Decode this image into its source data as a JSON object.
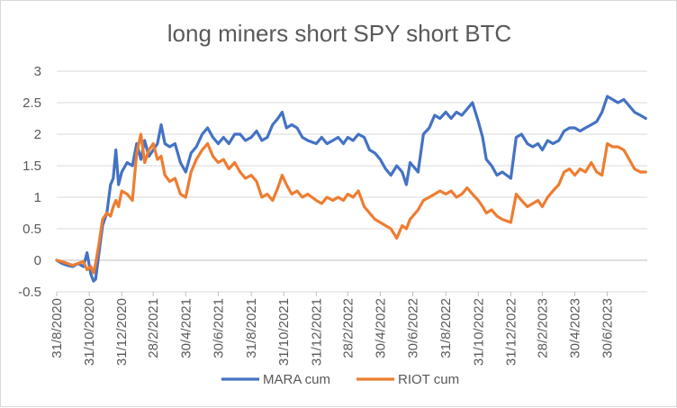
{
  "chart_data": {
    "type": "line",
    "title": "long miners short SPY short BTC",
    "xlabel": "",
    "ylabel": "",
    "ylim": [
      -0.5,
      3
    ],
    "yticks": [
      "3",
      "2.5",
      "2",
      "1.5",
      "1",
      "0.5",
      "0",
      "-0.5"
    ],
    "yticks_values": [
      3,
      2.5,
      2,
      1.5,
      1,
      0.5,
      0,
      -0.5
    ],
    "x_start": "31/8/2020",
    "x_end": "30/9/2023",
    "x_tick_labels": [
      "31/8/2020",
      "31/10/2020",
      "31/12/2020",
      "28/2/2021",
      "30/4/2021",
      "30/6/2021",
      "31/8/2021",
      "31/10/2021",
      "31/12/2021",
      "28/2/2022",
      "30/4/2022",
      "30/6/2022",
      "31/8/2022",
      "31/10/2022",
      "31/12/2022",
      "28/2/2023",
      "30/4/2023",
      "30/6/2023"
    ],
    "legend_position": "bottom",
    "grid": "horizontal",
    "series": [
      {
        "name": "MARA cum",
        "color": "#4472C4",
        "points": [
          [
            "2020-08-31",
            0.0
          ],
          [
            "2020-09-10",
            -0.05
          ],
          [
            "2020-09-20",
            -0.08
          ],
          [
            "2020-09-30",
            -0.1
          ],
          [
            "2020-10-10",
            -0.05
          ],
          [
            "2020-10-20",
            -0.1
          ],
          [
            "2020-10-27",
            0.12
          ],
          [
            "2020-11-03",
            -0.22
          ],
          [
            "2020-11-08",
            -0.33
          ],
          [
            "2020-11-12",
            -0.3
          ],
          [
            "2020-11-18",
            0.1
          ],
          [
            "2020-11-25",
            0.55
          ],
          [
            "2020-12-03",
            0.75
          ],
          [
            "2020-12-10",
            1.2
          ],
          [
            "2020-12-15",
            1.3
          ],
          [
            "2020-12-20",
            1.75
          ],
          [
            "2020-12-25",
            1.2
          ],
          [
            "2020-12-31",
            1.4
          ],
          [
            "2021-01-10",
            1.55
          ],
          [
            "2021-01-20",
            1.5
          ],
          [
            "2021-01-28",
            1.85
          ],
          [
            "2021-02-05",
            1.6
          ],
          [
            "2021-02-12",
            1.9
          ],
          [
            "2021-02-20",
            1.65
          ],
          [
            "2021-02-28",
            1.75
          ],
          [
            "2021-03-08",
            1.85
          ],
          [
            "2021-03-15",
            2.15
          ],
          [
            "2021-03-22",
            1.85
          ],
          [
            "2021-03-31",
            1.8
          ],
          [
            "2021-04-10",
            1.85
          ],
          [
            "2021-04-20",
            1.55
          ],
          [
            "2021-04-30",
            1.4
          ],
          [
            "2021-05-10",
            1.7
          ],
          [
            "2021-05-20",
            1.8
          ],
          [
            "2021-05-31",
            2.0
          ],
          [
            "2021-06-10",
            2.1
          ],
          [
            "2021-06-20",
            1.95
          ],
          [
            "2021-06-30",
            1.85
          ],
          [
            "2021-07-10",
            1.95
          ],
          [
            "2021-07-20",
            1.85
          ],
          [
            "2021-07-31",
            2.0
          ],
          [
            "2021-08-10",
            2.0
          ],
          [
            "2021-08-20",
            1.9
          ],
          [
            "2021-08-31",
            1.95
          ],
          [
            "2021-09-10",
            2.05
          ],
          [
            "2021-09-20",
            1.9
          ],
          [
            "2021-09-30",
            1.95
          ],
          [
            "2021-10-10",
            2.15
          ],
          [
            "2021-10-20",
            2.25
          ],
          [
            "2021-10-28",
            2.35
          ],
          [
            "2021-11-05",
            2.1
          ],
          [
            "2021-11-15",
            2.15
          ],
          [
            "2021-11-25",
            2.1
          ],
          [
            "2021-12-05",
            1.95
          ],
          [
            "2021-12-15",
            1.9
          ],
          [
            "2021-12-31",
            1.85
          ],
          [
            "2022-01-10",
            1.95
          ],
          [
            "2022-01-20",
            1.85
          ],
          [
            "2022-01-31",
            1.9
          ],
          [
            "2022-02-10",
            1.95
          ],
          [
            "2022-02-20",
            1.85
          ],
          [
            "2022-02-28",
            1.95
          ],
          [
            "2022-03-10",
            1.9
          ],
          [
            "2022-03-20",
            2.0
          ],
          [
            "2022-03-31",
            1.95
          ],
          [
            "2022-04-10",
            1.75
          ],
          [
            "2022-04-20",
            1.7
          ],
          [
            "2022-04-30",
            1.6
          ],
          [
            "2022-05-10",
            1.45
          ],
          [
            "2022-05-20",
            1.35
          ],
          [
            "2022-05-31",
            1.5
          ],
          [
            "2022-06-10",
            1.4
          ],
          [
            "2022-06-18",
            1.2
          ],
          [
            "2022-06-25",
            1.55
          ],
          [
            "2022-06-30",
            1.5
          ],
          [
            "2022-07-10",
            1.4
          ],
          [
            "2022-07-20",
            2.0
          ],
          [
            "2022-07-31",
            2.1
          ],
          [
            "2022-08-10",
            2.3
          ],
          [
            "2022-08-20",
            2.25
          ],
          [
            "2022-08-31",
            2.35
          ],
          [
            "2022-09-10",
            2.25
          ],
          [
            "2022-09-20",
            2.35
          ],
          [
            "2022-09-30",
            2.3
          ],
          [
            "2022-10-10",
            2.4
          ],
          [
            "2022-10-20",
            2.5
          ],
          [
            "2022-10-31",
            2.2
          ],
          [
            "2022-11-08",
            1.95
          ],
          [
            "2022-11-15",
            1.6
          ],
          [
            "2022-11-25",
            1.5
          ],
          [
            "2022-12-05",
            1.35
          ],
          [
            "2022-12-15",
            1.4
          ],
          [
            "2022-12-31",
            1.3
          ],
          [
            "2023-01-10",
            1.95
          ],
          [
            "2023-01-20",
            2.0
          ],
          [
            "2023-01-31",
            1.85
          ],
          [
            "2023-02-10",
            1.8
          ],
          [
            "2023-02-20",
            1.85
          ],
          [
            "2023-02-28",
            1.75
          ],
          [
            "2023-03-10",
            1.9
          ],
          [
            "2023-03-20",
            1.85
          ],
          [
            "2023-03-31",
            1.9
          ],
          [
            "2023-04-10",
            2.05
          ],
          [
            "2023-04-20",
            2.1
          ],
          [
            "2023-04-30",
            2.1
          ],
          [
            "2023-05-10",
            2.05
          ],
          [
            "2023-05-20",
            2.1
          ],
          [
            "2023-05-31",
            2.15
          ],
          [
            "2023-06-10",
            2.2
          ],
          [
            "2023-06-20",
            2.35
          ],
          [
            "2023-06-30",
            2.6
          ],
          [
            "2023-07-10",
            2.55
          ],
          [
            "2023-07-20",
            2.5
          ],
          [
            "2023-07-31",
            2.55
          ],
          [
            "2023-08-10",
            2.45
          ],
          [
            "2023-08-20",
            2.35
          ],
          [
            "2023-08-31",
            2.3
          ],
          [
            "2023-09-10",
            2.25
          ]
        ]
      },
      {
        "name": "RIOT cum",
        "color": "#ED7D31",
        "points": [
          [
            "2020-08-31",
            0.0
          ],
          [
            "2020-09-10",
            -0.02
          ],
          [
            "2020-09-20",
            -0.05
          ],
          [
            "2020-09-30",
            -0.08
          ],
          [
            "2020-10-10",
            -0.05
          ],
          [
            "2020-10-20",
            -0.02
          ],
          [
            "2020-10-27",
            -0.15
          ],
          [
            "2020-11-03",
            -0.1
          ],
          [
            "2020-11-08",
            -0.2
          ],
          [
            "2020-11-12",
            -0.05
          ],
          [
            "2020-11-18",
            0.25
          ],
          [
            "2020-11-25",
            0.65
          ],
          [
            "2020-12-03",
            0.75
          ],
          [
            "2020-12-10",
            0.7
          ],
          [
            "2020-12-15",
            0.85
          ],
          [
            "2020-12-20",
            0.95
          ],
          [
            "2020-12-25",
            0.85
          ],
          [
            "2020-12-31",
            1.1
          ],
          [
            "2021-01-10",
            1.05
          ],
          [
            "2021-01-20",
            0.95
          ],
          [
            "2021-01-28",
            1.7
          ],
          [
            "2021-02-05",
            2.0
          ],
          [
            "2021-02-12",
            1.55
          ],
          [
            "2021-02-20",
            1.75
          ],
          [
            "2021-02-28",
            1.85
          ],
          [
            "2021-03-08",
            1.6
          ],
          [
            "2021-03-15",
            1.65
          ],
          [
            "2021-03-22",
            1.35
          ],
          [
            "2021-03-31",
            1.25
          ],
          [
            "2021-04-10",
            1.3
          ],
          [
            "2021-04-20",
            1.05
          ],
          [
            "2021-04-30",
            1.0
          ],
          [
            "2021-05-10",
            1.4
          ],
          [
            "2021-05-20",
            1.6
          ],
          [
            "2021-05-31",
            1.75
          ],
          [
            "2021-06-10",
            1.85
          ],
          [
            "2021-06-20",
            1.65
          ],
          [
            "2021-06-30",
            1.55
          ],
          [
            "2021-07-10",
            1.6
          ],
          [
            "2021-07-20",
            1.45
          ],
          [
            "2021-07-31",
            1.55
          ],
          [
            "2021-08-10",
            1.4
          ],
          [
            "2021-08-20",
            1.3
          ],
          [
            "2021-08-31",
            1.35
          ],
          [
            "2021-09-10",
            1.25
          ],
          [
            "2021-09-20",
            1.0
          ],
          [
            "2021-09-30",
            1.05
          ],
          [
            "2021-10-10",
            0.95
          ],
          [
            "2021-10-20",
            1.15
          ],
          [
            "2021-10-28",
            1.35
          ],
          [
            "2021-11-05",
            1.2
          ],
          [
            "2021-11-15",
            1.05
          ],
          [
            "2021-11-25",
            1.1
          ],
          [
            "2021-12-05",
            1.0
          ],
          [
            "2021-12-15",
            1.05
          ],
          [
            "2021-12-31",
            0.95
          ],
          [
            "2022-01-10",
            0.9
          ],
          [
            "2022-01-20",
            1.0
          ],
          [
            "2022-01-31",
            0.95
          ],
          [
            "2022-02-10",
            1.0
          ],
          [
            "2022-02-20",
            0.95
          ],
          [
            "2022-02-28",
            1.05
          ],
          [
            "2022-03-10",
            1.0
          ],
          [
            "2022-03-20",
            1.1
          ],
          [
            "2022-03-31",
            0.85
          ],
          [
            "2022-04-10",
            0.75
          ],
          [
            "2022-04-20",
            0.65
          ],
          [
            "2022-04-30",
            0.6
          ],
          [
            "2022-05-10",
            0.55
          ],
          [
            "2022-05-20",
            0.5
          ],
          [
            "2022-05-31",
            0.35
          ],
          [
            "2022-06-10",
            0.55
          ],
          [
            "2022-06-18",
            0.5
          ],
          [
            "2022-06-25",
            0.65
          ],
          [
            "2022-06-30",
            0.7
          ],
          [
            "2022-07-10",
            0.8
          ],
          [
            "2022-07-20",
            0.95
          ],
          [
            "2022-07-31",
            1.0
          ],
          [
            "2022-08-10",
            1.05
          ],
          [
            "2022-08-20",
            1.1
          ],
          [
            "2022-08-31",
            1.05
          ],
          [
            "2022-09-10",
            1.1
          ],
          [
            "2022-09-20",
            1.0
          ],
          [
            "2022-09-30",
            1.05
          ],
          [
            "2022-10-10",
            1.15
          ],
          [
            "2022-10-20",
            1.05
          ],
          [
            "2022-10-31",
            0.95
          ],
          [
            "2022-11-08",
            0.85
          ],
          [
            "2022-11-15",
            0.75
          ],
          [
            "2022-11-25",
            0.8
          ],
          [
            "2022-12-05",
            0.7
          ],
          [
            "2022-12-15",
            0.65
          ],
          [
            "2022-12-31",
            0.6
          ],
          [
            "2023-01-10",
            1.05
          ],
          [
            "2023-01-20",
            0.95
          ],
          [
            "2023-01-31",
            0.85
          ],
          [
            "2023-02-10",
            0.9
          ],
          [
            "2023-02-20",
            0.95
          ],
          [
            "2023-02-28",
            0.85
          ],
          [
            "2023-03-10",
            1.0
          ],
          [
            "2023-03-20",
            1.1
          ],
          [
            "2023-03-31",
            1.2
          ],
          [
            "2023-04-10",
            1.4
          ],
          [
            "2023-04-20",
            1.45
          ],
          [
            "2023-04-30",
            1.35
          ],
          [
            "2023-05-10",
            1.45
          ],
          [
            "2023-05-20",
            1.4
          ],
          [
            "2023-05-31",
            1.55
          ],
          [
            "2023-06-10",
            1.4
          ],
          [
            "2023-06-20",
            1.35
          ],
          [
            "2023-06-30",
            1.85
          ],
          [
            "2023-07-10",
            1.8
          ],
          [
            "2023-07-20",
            1.8
          ],
          [
            "2023-07-31",
            1.75
          ],
          [
            "2023-08-10",
            1.6
          ],
          [
            "2023-08-20",
            1.45
          ],
          [
            "2023-08-31",
            1.4
          ],
          [
            "2023-09-10",
            1.4
          ]
        ]
      }
    ]
  }
}
